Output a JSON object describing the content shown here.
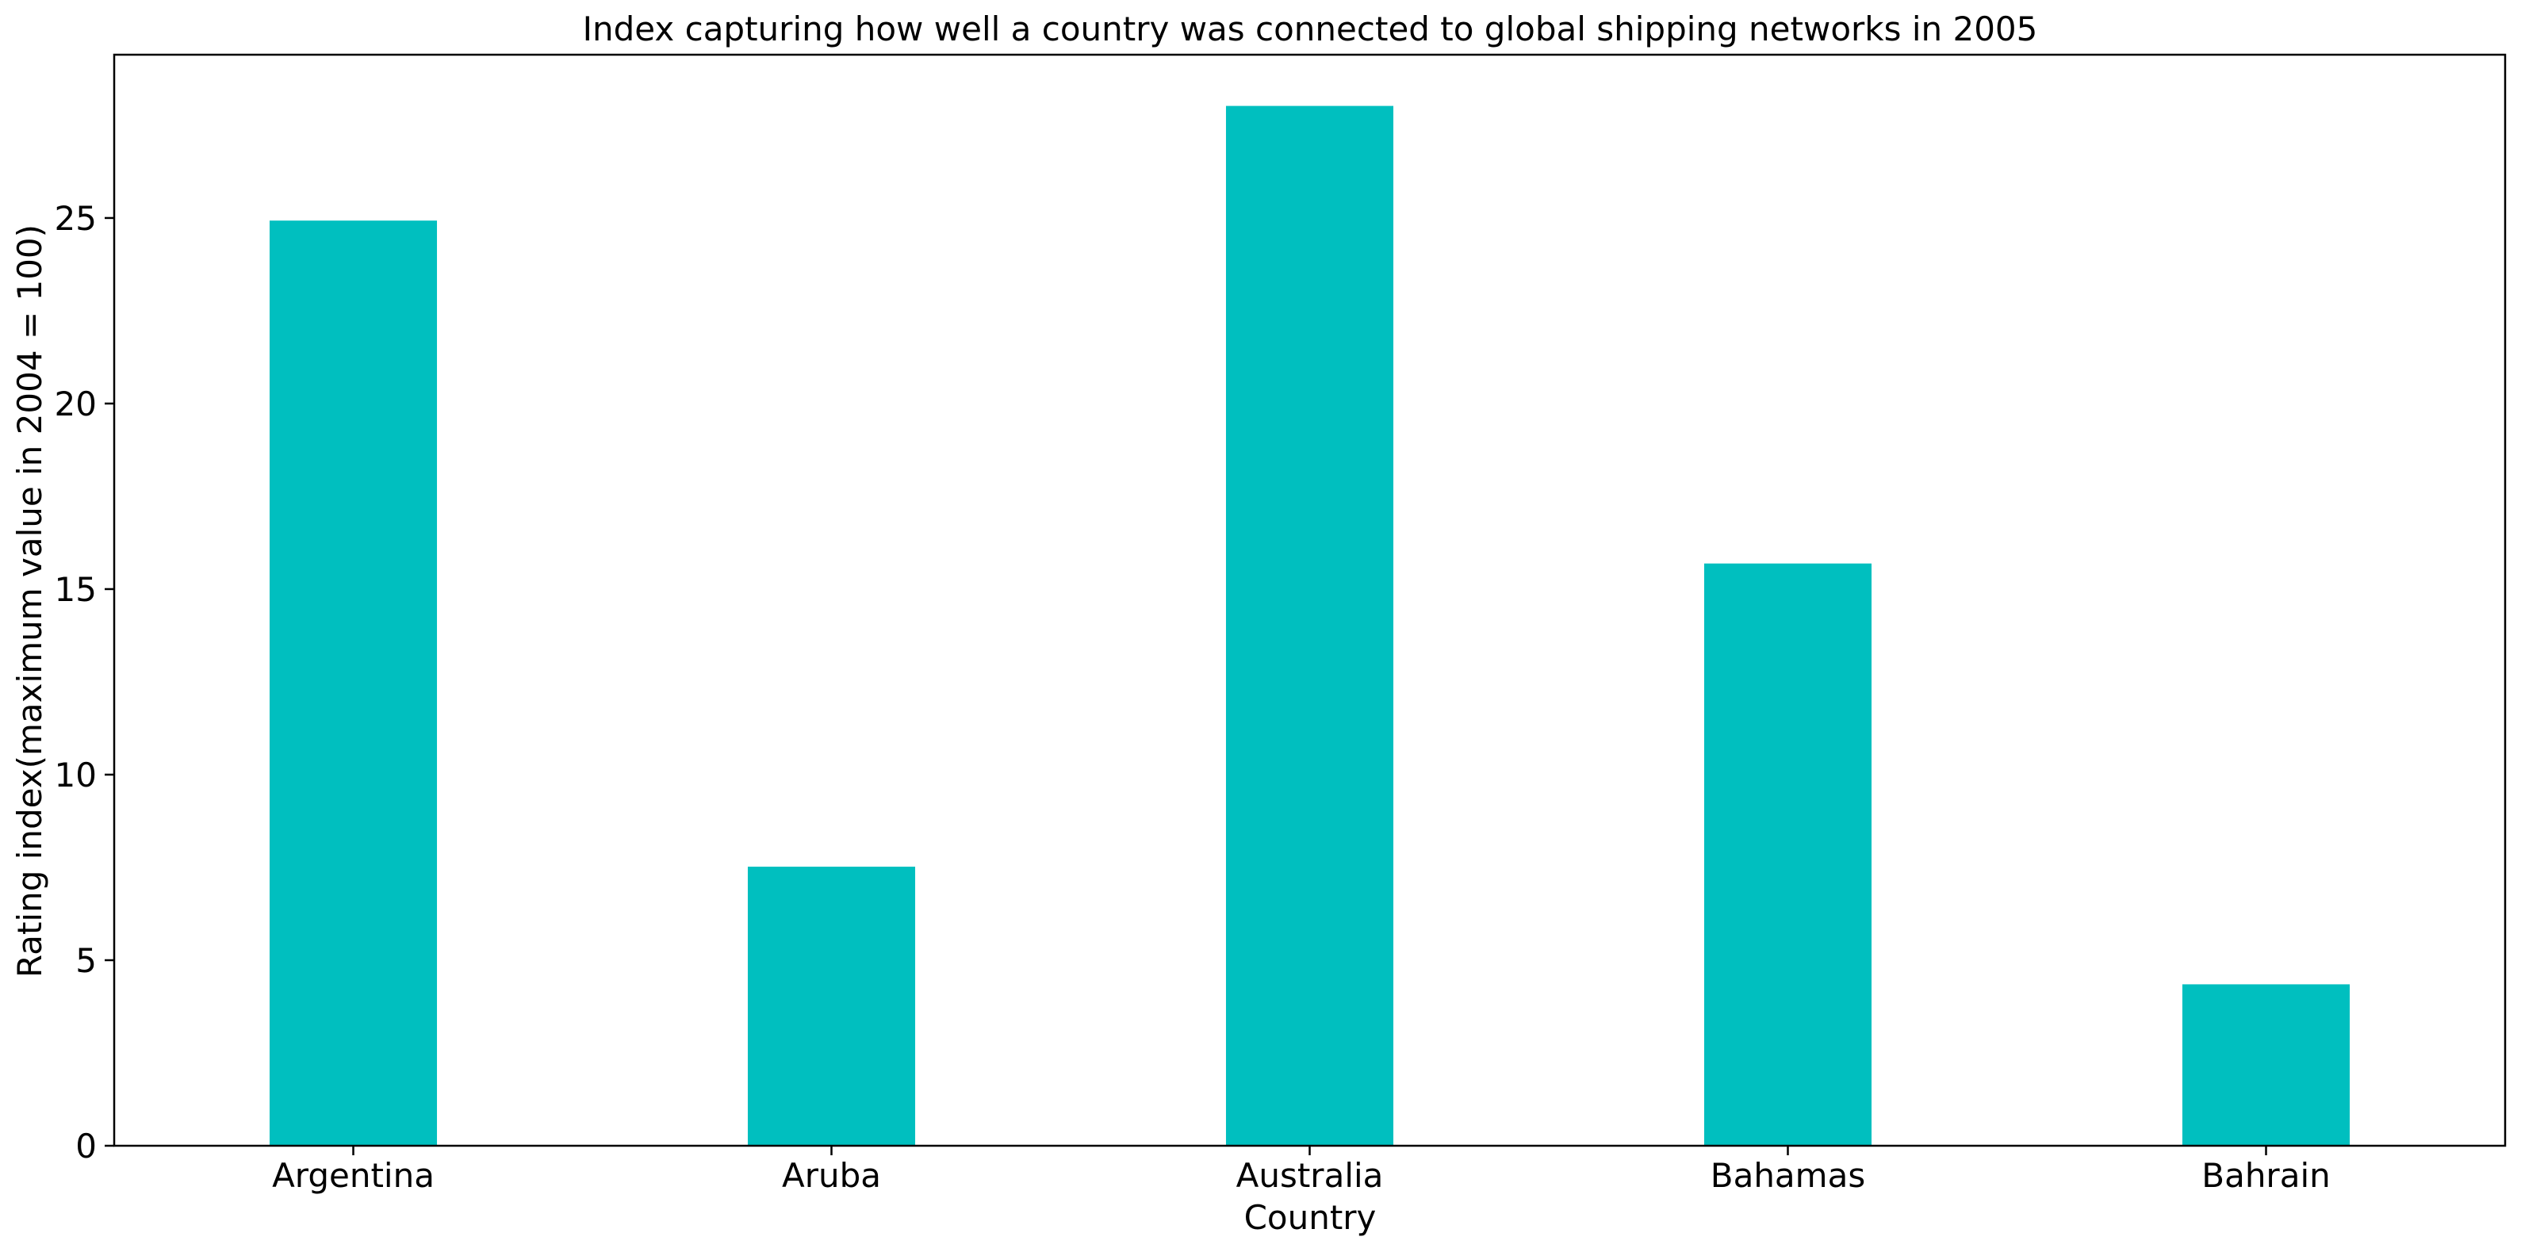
{
  "chart_data": {
    "type": "bar",
    "title": "Index capturing how well a country was connected to global shipping networks in 2005",
    "xlabel": "Country",
    "ylabel": "Rating index(maximum value in 2004 = 100)",
    "categories": [
      "Argentina",
      "Aruba",
      "Australia",
      "Bahamas",
      "Bahrain"
    ],
    "values": [
      24.93,
      7.52,
      28.02,
      15.69,
      4.35
    ],
    "ylim": [
      0,
      29.4
    ],
    "yticks": [
      0,
      5,
      10,
      15,
      20,
      25
    ],
    "bar_color": "#00BFBF",
    "grid": false,
    "legend": "none"
  }
}
